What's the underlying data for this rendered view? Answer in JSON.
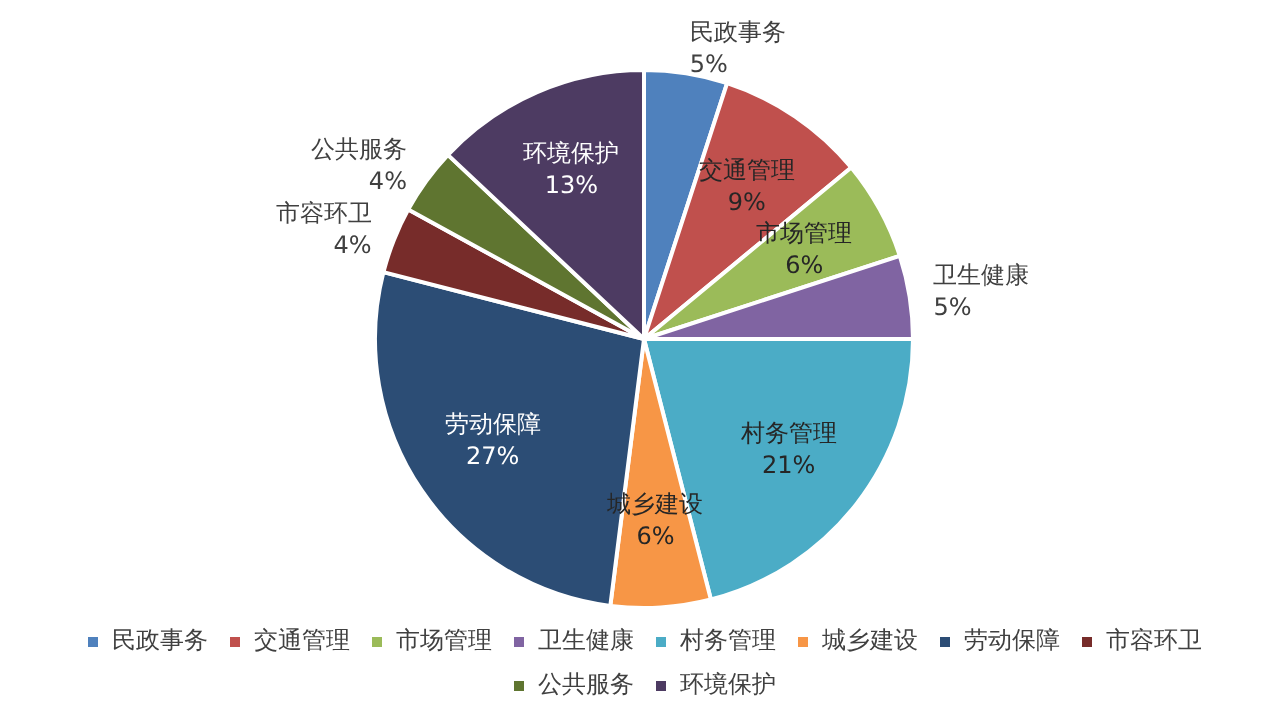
{
  "chart_data": {
    "type": "pie",
    "categories": [
      "民政事务",
      "交通管理",
      "市场管理",
      "卫生健康",
      "村务管理",
      "城乡建设",
      "劳动保障",
      "市容环卫",
      "公共服务",
      "环境保护"
    ],
    "values": [
      5,
      9,
      6,
      5,
      21,
      6,
      27,
      4,
      4,
      13
    ],
    "colors": [
      "#4f81bd",
      "#c0504d",
      "#9bbb59",
      "#8064a2",
      "#4bacc6",
      "#f79646",
      "#2c4d75",
      "#772c2a",
      "#5f7530",
      "#4d3b62"
    ],
    "value_labels": [
      "5%",
      "9%",
      "6%",
      "5%",
      "21%",
      "6%",
      "27%",
      "4%",
      "4%",
      "13%"
    ],
    "legend": "bottom"
  }
}
